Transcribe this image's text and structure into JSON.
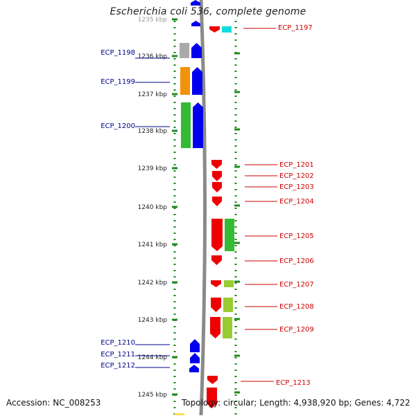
{
  "header": {
    "title": "Escherichia coli 536, complete genome"
  },
  "footer": {
    "accession": "Accession: NC_008253",
    "summary": "Topology: circular; Length: 4,938,920 bp; Genes: 4,722"
  },
  "scale": {
    "unit": "kbp",
    "ticks": [
      {
        "label": "1235 kbp",
        "faded": true
      },
      {
        "label": "1236 kbp"
      },
      {
        "label": "1237 kbp"
      },
      {
        "label": "1238 kbp"
      },
      {
        "label": "1239 kbp"
      },
      {
        "label": "1240 kbp"
      },
      {
        "label": "1241 kbp"
      },
      {
        "label": "1242 kbp"
      },
      {
        "label": "1243 kbp"
      },
      {
        "label": "1244 kbp"
      },
      {
        "label": "1245 kbp"
      }
    ]
  },
  "colors": {
    "backbone": "#8a8a8a",
    "frame_dots": "#1f8a1f",
    "forward_gene": "#0000ee",
    "reverse_gene": "#ee0000",
    "left_label": "#00008b",
    "right_label": "#cc0000",
    "gray": "#aaaaaa",
    "orange": "#f0930a",
    "green": "#33bb33",
    "lightgreen": "#99cc33",
    "cyan": "#11dddd",
    "yellow": "#ffdd55"
  },
  "genes_left": [
    {
      "id": "ECP_1198"
    },
    {
      "id": "ECP_1199"
    },
    {
      "id": "ECP_1200"
    },
    {
      "id": "ECP_1210"
    },
    {
      "id": "ECP_1211"
    },
    {
      "id": "ECP_1212"
    }
  ],
  "genes_right": [
    {
      "id": "ECP_1197"
    },
    {
      "id": "ECP_1201"
    },
    {
      "id": "ECP_1202"
    },
    {
      "id": "ECP_1203"
    },
    {
      "id": "ECP_1204"
    },
    {
      "id": "ECP_1205"
    },
    {
      "id": "ECP_1206"
    },
    {
      "id": "ECP_1207"
    },
    {
      "id": "ECP_1208"
    },
    {
      "id": "ECP_1209"
    },
    {
      "id": "ECP_1213"
    }
  ]
}
